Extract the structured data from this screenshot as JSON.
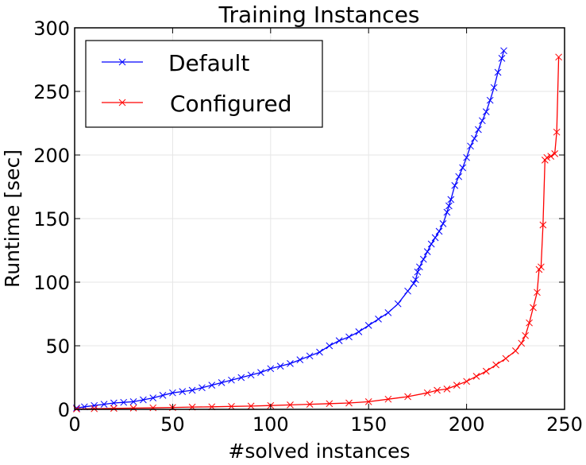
{
  "chart_data": {
    "type": "line",
    "title": "Training Instances",
    "xlabel": "#solved instances",
    "ylabel": "Runtime [sec]",
    "xlim": [
      0,
      250
    ],
    "ylim": [
      0,
      300
    ],
    "xticks": [
      "0",
      "50",
      "100",
      "150",
      "200",
      "250"
    ],
    "yticks": [
      "0",
      "50",
      "100",
      "150",
      "200",
      "250",
      "300"
    ],
    "grid": true,
    "legend_position": "top-left",
    "series": [
      {
        "name": "Default",
        "color": "#0000ff",
        "marker": "x",
        "x": [
          1,
          5,
          10,
          15,
          20,
          25,
          30,
          35,
          40,
          45,
          50,
          55,
          60,
          65,
          70,
          75,
          80,
          85,
          90,
          95,
          100,
          105,
          110,
          115,
          120,
          125,
          130,
          135,
          140,
          145,
          150,
          155,
          160,
          165,
          170,
          173,
          174,
          175,
          176,
          178,
          180,
          182,
          184,
          186,
          188,
          190,
          191,
          192,
          194,
          196,
          198,
          200,
          202,
          204,
          206,
          208,
          210,
          212,
          214,
          216,
          218,
          219
        ],
        "y": [
          1,
          2,
          3,
          4,
          5,
          5.5,
          6,
          7.5,
          9,
          11,
          13,
          14,
          15,
          17,
          19,
          21,
          23,
          25,
          27,
          29,
          32,
          34,
          36,
          39,
          42,
          45,
          50,
          54,
          57,
          61,
          66,
          71,
          76,
          83,
          93,
          99,
          102,
          108,
          112,
          118,
          124,
          130,
          135,
          140,
          146,
          155,
          160,
          165,
          176,
          183,
          190,
          198,
          207,
          213,
          220,
          227,
          234,
          243,
          253,
          265,
          276,
          282
        ]
      },
      {
        "name": "Configured",
        "color": "#ff0000",
        "marker": "x",
        "x": [
          1,
          10,
          20,
          30,
          40,
          50,
          60,
          70,
          80,
          90,
          100,
          110,
          120,
          130,
          140,
          150,
          160,
          170,
          180,
          185,
          190,
          195,
          200,
          205,
          210,
          215,
          220,
          225,
          228,
          230,
          232,
          234,
          236,
          237,
          238,
          239,
          240,
          241,
          243,
          245,
          246,
          247
        ],
        "y": [
          0.3,
          0.5,
          0.8,
          1,
          1.2,
          1.5,
          1.8,
          2,
          2.3,
          2.6,
          3,
          3.5,
          4,
          4.5,
          5,
          6,
          8,
          10,
          13,
          15,
          16,
          19,
          22,
          26,
          30,
          35,
          40,
          46,
          52,
          58,
          68,
          80,
          92,
          110,
          112,
          145,
          196,
          198,
          199,
          201,
          218,
          277
        ]
      }
    ]
  }
}
